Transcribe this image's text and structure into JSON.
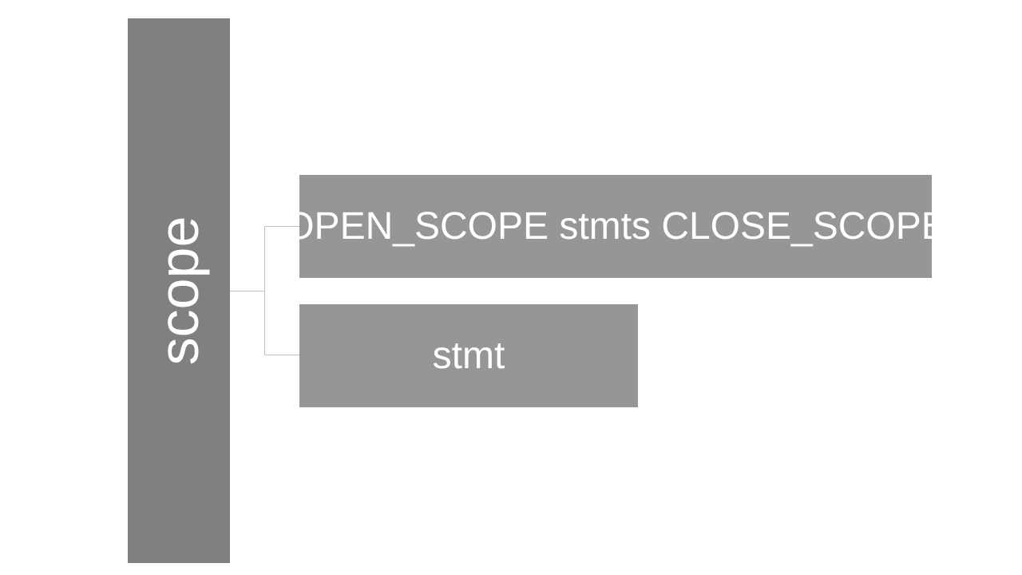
{
  "diagram": {
    "root": {
      "label": "scope"
    },
    "children": [
      {
        "label": "OPEN_SCOPE stmts CLOSE_SCOPE"
      },
      {
        "label": "stmt"
      }
    ],
    "colors": {
      "root_fill": "#808080",
      "child_fill": "#969696",
      "connector": "#bfbfbf",
      "text": "#ffffff",
      "background": "#ffffff"
    }
  }
}
